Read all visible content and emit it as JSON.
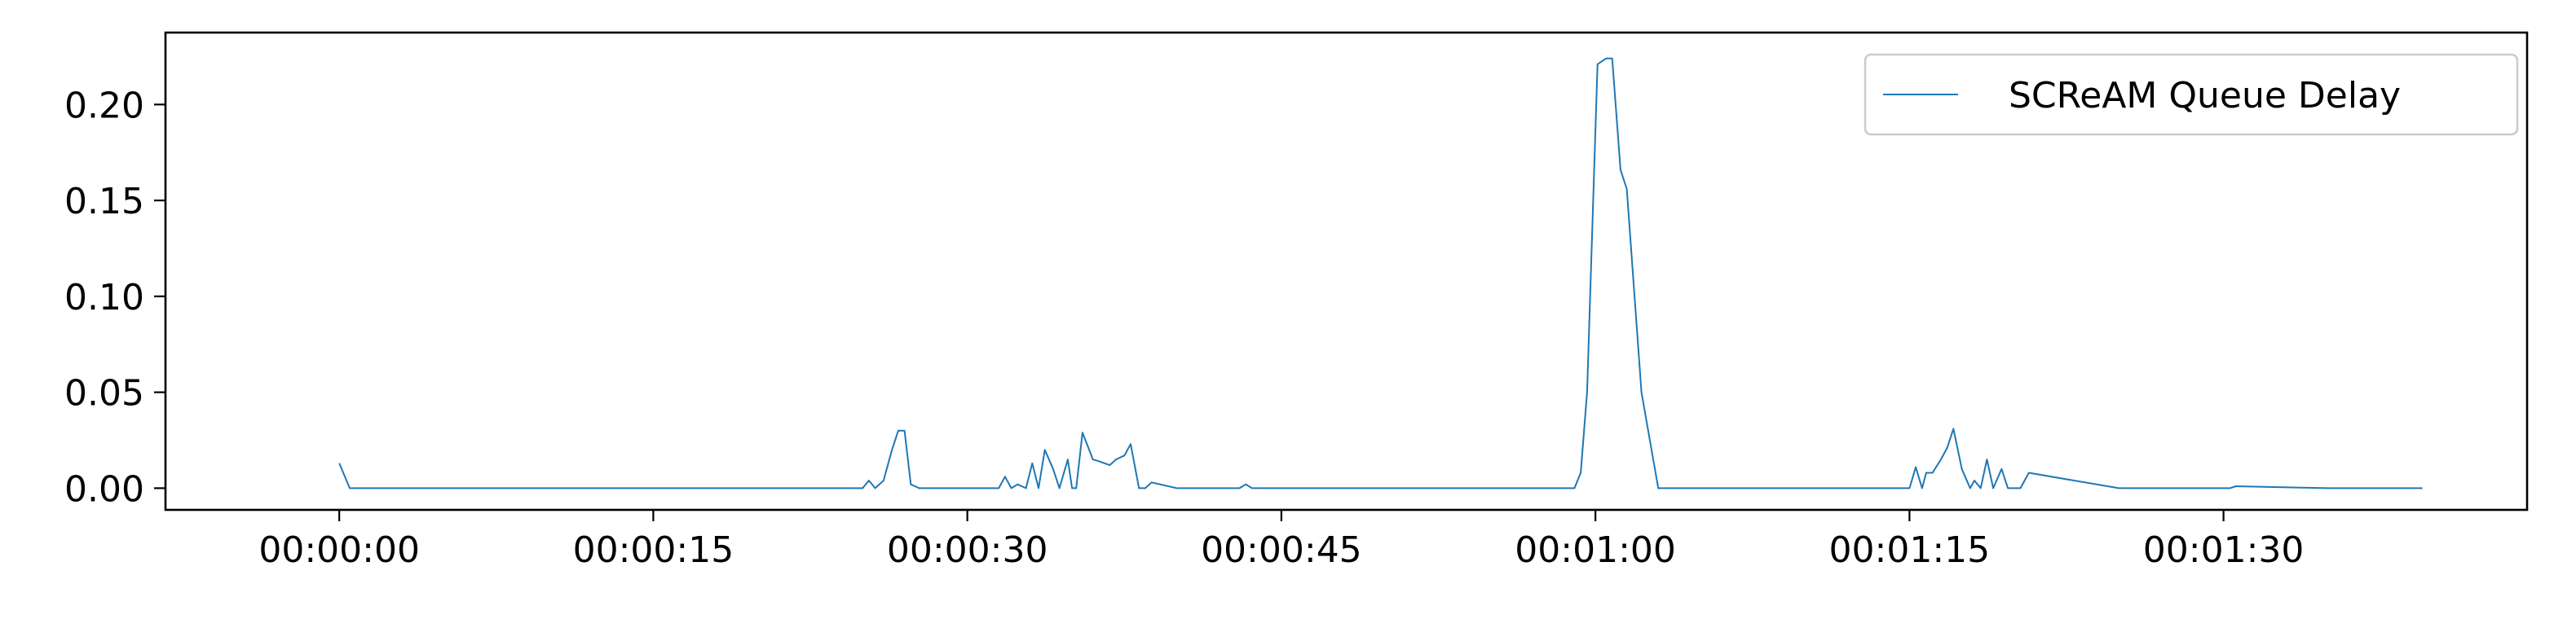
{
  "chart_data": {
    "type": "line",
    "title": "",
    "xlabel": "",
    "ylabel": "",
    "x_unit": "seconds elapsed (tick labels show HH:MM:SS)",
    "xlim": [
      -8.3,
      104.5
    ],
    "ylim": [
      -0.0113,
      0.2375
    ],
    "x_ticks": [
      {
        "value": 0,
        "label": "00:00:00"
      },
      {
        "value": 15,
        "label": "00:00:15"
      },
      {
        "value": 30,
        "label": "00:00:30"
      },
      {
        "value": 45,
        "label": "00:00:45"
      },
      {
        "value": 60,
        "label": "00:01:00"
      },
      {
        "value": 75,
        "label": "00:01:15"
      },
      {
        "value": 90,
        "label": "00:01:30"
      }
    ],
    "y_ticks": [
      {
        "value": 0.0,
        "label": "0.00"
      },
      {
        "value": 0.05,
        "label": "0.05"
      },
      {
        "value": 0.1,
        "label": "0.10"
      },
      {
        "value": 0.15,
        "label": "0.15"
      },
      {
        "value": 0.2,
        "label": "0.20"
      }
    ],
    "grid": false,
    "legend": {
      "placement": "top-right",
      "entries": [
        "SCReAM Queue Delay"
      ]
    },
    "series": [
      {
        "name": "SCReAM Queue Delay",
        "color": "#1f77b4",
        "x": [
          0,
          0.5,
          1,
          5,
          10,
          15,
          20,
          25,
          25.3,
          25.6,
          26,
          26.4,
          26.7,
          27,
          27.3,
          27.7,
          28,
          28.3,
          28.6,
          30,
          31.5,
          31.8,
          32.1,
          32.4,
          32.8,
          33.1,
          33.4,
          33.7,
          34.1,
          34.4,
          34.8,
          35,
          35.2,
          35.5,
          36,
          36.3,
          36.8,
          37.1,
          37.5,
          37.8,
          38.2,
          38.5,
          38.8,
          40,
          43,
          43.3,
          43.6,
          50,
          59,
          59.3,
          59.6,
          60.1,
          60.5,
          60.8,
          61.2,
          61.5,
          62.2,
          62.6,
          63,
          68,
          73,
          75,
          75.3,
          75.6,
          75.8,
          76.1,
          76.5,
          76.8,
          77.1,
          77.5,
          77.9,
          78.1,
          78.4,
          78.7,
          79,
          79.4,
          79.7,
          80,
          80.3,
          80.7,
          85,
          90,
          90.3,
          90.6,
          95,
          99.5
        ],
        "y": [
          0.013,
          0.0,
          0.0,
          0.0,
          0.0,
          0.0,
          0.0,
          0.0,
          0.004,
          0.0,
          0.004,
          0.02,
          0.03,
          0.03,
          0.002,
          0.0,
          0.0,
          0.0,
          0.0,
          0.0,
          0.0,
          0.006,
          0.0,
          0.002,
          0.0,
          0.013,
          0.0,
          0.02,
          0.01,
          0.0,
          0.015,
          0.0,
          0.0,
          0.029,
          0.015,
          0.014,
          0.012,
          0.015,
          0.017,
          0.023,
          0.0,
          0.0,
          0.003,
          0.0,
          0.0,
          0.002,
          0.0,
          0.0,
          0.0,
          0.008,
          0.05,
          0.221,
          0.224,
          0.224,
          0.166,
          0.156,
          0.05,
          0.025,
          0.0,
          0.0,
          0.0,
          0.0,
          0.011,
          0.0,
          0.008,
          0.008,
          0.015,
          0.021,
          0.031,
          0.01,
          0.0,
          0.004,
          0.0,
          0.015,
          0.0,
          0.01,
          0.0,
          0.0,
          0.0,
          0.008,
          0.0,
          0.0,
          0.0,
          0.001,
          0.0,
          0.0
        ]
      }
    ]
  }
}
